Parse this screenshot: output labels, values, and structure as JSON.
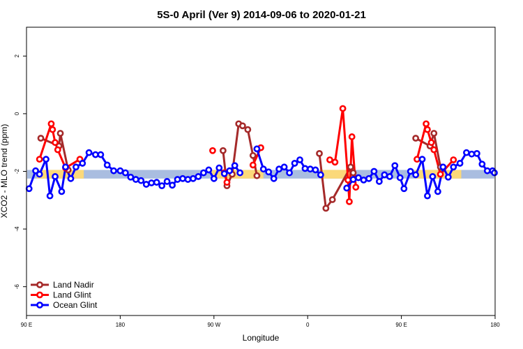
{
  "chart_data": {
    "type": "line",
    "title": "5S-0 April (Ver 9)   2014-09-06 to 2020-01-21",
    "xlabel": "Longitude",
    "ylabel": "XCO2 - MLO trend (ppm)",
    "xlim": [
      0,
      360
    ],
    "ylim": [
      -7,
      3
    ],
    "x_ticks": [
      {
        "value": 0,
        "label": "90 E"
      },
      {
        "value": 72,
        "label": "180"
      },
      {
        "value": 144,
        "label": "90 W"
      },
      {
        "value": 216,
        "label": "0"
      },
      {
        "value": 288,
        "label": "90 E"
      },
      {
        "value": 360,
        "label": "180"
      }
    ],
    "y_ticks": [
      {
        "value": 2,
        "label": "2"
      },
      {
        "value": 0,
        "label": "0"
      },
      {
        "value": -2,
        "label": "-2"
      },
      {
        "value": -4,
        "label": "-4"
      },
      {
        "value": -6,
        "label": "-6"
      }
    ],
    "legend_position": "bottom-left",
    "background_bands": [
      {
        "name": "ocean",
        "color": "#a9bde0",
        "y_range": [
          -2.25,
          -1.95
        ],
        "x_ranges": [
          [
            0,
            360
          ]
        ]
      },
      {
        "name": "land",
        "color": "#fbd97a",
        "y_range": [
          -2.25,
          -1.95
        ],
        "x_ranges": [
          [
            8,
            44
          ],
          [
            142,
            182
          ],
          [
            226,
            250
          ],
          [
            298,
            334
          ]
        ]
      }
    ],
    "series": [
      {
        "name": "Land Nadir",
        "color": "#a52a2a",
        "segments": [
          [
            [
              11,
              -0.85
            ],
            [
              25,
              -1.12
            ],
            [
              26,
              -0.68
            ],
            [
              32,
              -1.95
            ]
          ],
          [
            [
              151,
              -1.28
            ],
            [
              154,
              -2.5
            ],
            [
              158,
              -2.1
            ],
            [
              163,
              -0.35
            ],
            [
              166,
              -0.42
            ],
            [
              170,
              -0.55
            ],
            [
              174,
              -1.45
            ],
            [
              177,
              -2.15
            ]
          ],
          [
            [
              225,
              -1.38
            ],
            [
              230,
              -3.28
            ],
            [
              235,
              -2.98
            ],
            [
              249,
              -1.85
            ],
            [
              251,
              -2.05
            ]
          ],
          [
            [
              299,
              -0.85
            ],
            [
              310,
              -1.12
            ],
            [
              313,
              -0.68
            ],
            [
              318,
              -1.85
            ]
          ]
        ]
      },
      {
        "name": "Land Glint",
        "color": "#ff0000",
        "segments": [
          [
            [
              10,
              -1.58
            ],
            [
              19,
              -0.35
            ],
            [
              20,
              -0.55
            ],
            [
              22,
              -1.0
            ],
            [
              24,
              -1.25
            ],
            [
              30,
              -1.88
            ],
            [
              41,
              -1.58
            ]
          ],
          [
            [
              143,
              -1.28
            ]
          ],
          [
            [
              152,
              -2.05
            ],
            [
              154,
              -2.38
            ]
          ],
          [
            [
              174,
              -1.78
            ],
            [
              180,
              -1.18
            ]
          ],
          [
            [
              233,
              -1.6
            ],
            [
              237,
              -1.68
            ],
            [
              243,
              0.18
            ],
            [
              247,
              -2.3
            ],
            [
              248,
              -3.05
            ],
            [
              250,
              -0.8
            ],
            [
              253,
              -2.55
            ]
          ],
          [
            [
              300,
              -1.58
            ],
            [
              307,
              -0.35
            ],
            [
              308,
              -0.55
            ],
            [
              311,
              -1.0
            ],
            [
              313,
              -1.25
            ],
            [
              318,
              -2.1
            ],
            [
              328,
              -1.6
            ]
          ]
        ]
      },
      {
        "name": "Ocean Glint",
        "color": "#0000ff",
        "segments": [
          [
            [
              2,
              -2.6
            ],
            [
              7,
              -1.98
            ],
            [
              10,
              -2.1
            ],
            [
              15,
              -1.58
            ],
            [
              18,
              -2.85
            ],
            [
              22,
              -2.18
            ],
            [
              27,
              -2.7
            ],
            [
              30,
              -1.85
            ],
            [
              34,
              -2.25
            ],
            [
              38,
              -1.85
            ],
            [
              43,
              -1.72
            ],
            [
              48,
              -1.35
            ],
            [
              53,
              -1.42
            ],
            [
              57,
              -1.42
            ],
            [
              62,
              -1.78
            ],
            [
              67,
              -1.98
            ],
            [
              72,
              -1.98
            ],
            [
              76,
              -2.05
            ],
            [
              80,
              -2.2
            ],
            [
              84,
              -2.28
            ],
            [
              88,
              -2.32
            ],
            [
              92,
              -2.45
            ],
            [
              96,
              -2.4
            ],
            [
              100,
              -2.38
            ],
            [
              104,
              -2.5
            ],
            [
              108,
              -2.35
            ],
            [
              112,
              -2.48
            ],
            [
              116,
              -2.28
            ],
            [
              120,
              -2.25
            ],
            [
              124,
              -2.28
            ],
            [
              128,
              -2.25
            ],
            [
              132,
              -2.18
            ],
            [
              136,
              -2.05
            ],
            [
              140,
              -1.95
            ],
            [
              144,
              -2.25
            ],
            [
              148,
              -1.88
            ],
            [
              152,
              -2.08
            ],
            [
              156,
              -1.98
            ],
            [
              160,
              -1.8
            ],
            [
              164,
              -2.05
            ]
          ],
          [
            [
              177,
              -1.22
            ],
            [
              182,
              -1.92
            ],
            [
              186,
              -2.02
            ],
            [
              190,
              -2.25
            ],
            [
              194,
              -1.92
            ],
            [
              198,
              -1.85
            ],
            [
              202,
              -2.05
            ],
            [
              206,
              -1.72
            ],
            [
              210,
              -1.6
            ],
            [
              214,
              -1.9
            ],
            [
              218,
              -1.92
            ],
            [
              222,
              -1.95
            ],
            [
              226,
              -2.12
            ]
          ],
          [
            [
              246,
              -2.58
            ],
            [
              251,
              -2.28
            ],
            [
              255,
              -2.22
            ],
            [
              259,
              -2.3
            ],
            [
              263,
              -2.25
            ],
            [
              267,
              -2.0
            ],
            [
              271,
              -2.35
            ],
            [
              275,
              -2.12
            ],
            [
              279,
              -2.18
            ],
            [
              283,
              -1.8
            ],
            [
              287,
              -2.22
            ],
            [
              290,
              -2.6
            ],
            [
              295,
              -2.0
            ],
            [
              299,
              -2.12
            ],
            [
              304,
              -1.58
            ],
            [
              308,
              -2.85
            ],
            [
              312,
              -2.18
            ],
            [
              316,
              -2.7
            ],
            [
              320,
              -1.85
            ],
            [
              324,
              -2.2
            ],
            [
              328,
              -1.85
            ],
            [
              333,
              -1.72
            ],
            [
              338,
              -1.35
            ],
            [
              342,
              -1.4
            ],
            [
              346,
              -1.38
            ],
            [
              350,
              -1.75
            ],
            [
              354,
              -1.98
            ],
            [
              358,
              -1.98
            ],
            [
              361,
              -2.05
            ]
          ]
        ]
      }
    ]
  }
}
